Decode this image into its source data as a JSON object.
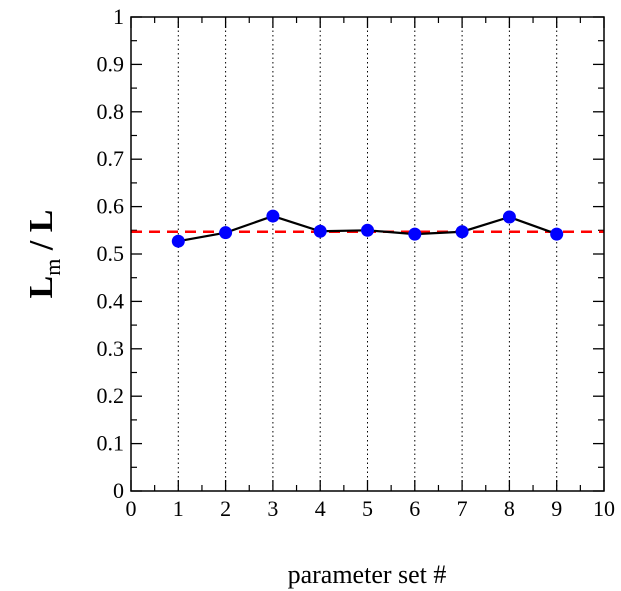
{
  "chart_data": {
    "type": "line",
    "x": [
      1,
      2,
      3,
      4,
      5,
      6,
      7,
      8,
      9
    ],
    "series": [
      {
        "values": [
          0.527,
          0.545,
          0.58,
          0.548,
          0.55,
          0.542,
          0.547,
          0.578,
          0.542
        ],
        "color": "#0000ff",
        "line_color": "#000000",
        "marker": "circle"
      }
    ],
    "reference_line": {
      "y": 0.547,
      "color": "#ff0000",
      "style": "dashed"
    },
    "xlim": [
      0,
      10
    ],
    "ylim": [
      0,
      1
    ],
    "x_ticks": [
      "0",
      "1",
      "2",
      "3",
      "4",
      "5",
      "6",
      "7",
      "8",
      "9",
      "10"
    ],
    "y_ticks": [
      "0",
      "0.1",
      "0.2",
      "0.3",
      "0.4",
      "0.5",
      "0.6",
      "0.7",
      "0.8",
      "0.9",
      "1"
    ],
    "xlabel": "parameter set #",
    "ylabel_main": "L",
    "ylabel_sub": "m",
    "ylabel_rest": " / L",
    "vertical_grid": "dotted at integer x 1-9"
  }
}
